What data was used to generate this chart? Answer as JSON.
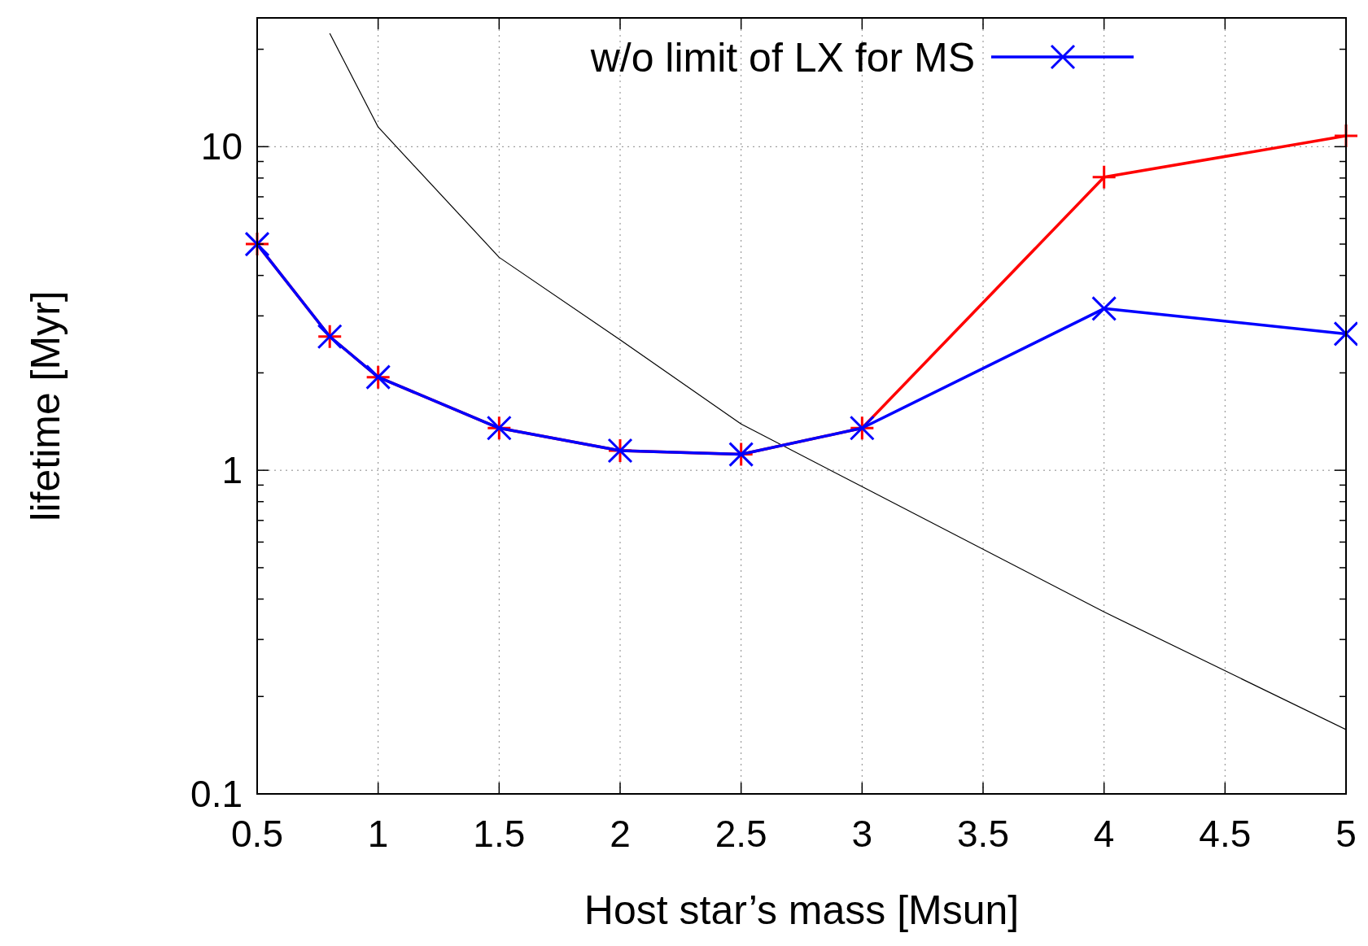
{
  "chart_data": {
    "type": "line",
    "xlabel": "Host star’s mass [Msun]",
    "ylabel": "lifetime [Myr]",
    "log": "y",
    "xlim": [
      0.5,
      5
    ],
    "xticks": [
      0.5,
      1,
      1.5,
      2,
      2.5,
      3,
      3.5,
      4,
      4.5,
      5
    ],
    "ylim": [
      0.1,
      25
    ],
    "yticks": [
      0.1,
      {
        "value": 0.2,
        "label": null
      },
      {
        "value": 0.3,
        "label": null
      },
      {
        "value": 0.4,
        "label": null
      },
      {
        "value": 0.5,
        "label": null
      },
      {
        "value": 0.6,
        "label": null
      },
      {
        "value": 0.7,
        "label": null
      },
      {
        "value": 0.8,
        "label": null
      },
      {
        "value": 0.9,
        "label": null
      },
      1,
      {
        "value": 2,
        "label": null
      },
      {
        "value": 3,
        "label": null
      },
      {
        "value": 4,
        "label": null
      },
      {
        "value": 5,
        "label": null
      },
      {
        "value": 6,
        "label": null
      },
      {
        "value": 7,
        "label": null
      },
      {
        "value": 8,
        "label": null
      },
      {
        "value": 9,
        "label": null
      },
      10,
      {
        "value": 20,
        "label": null
      }
    ],
    "grid": true,
    "legend": "top",
    "x": [
      0.5,
      0.8,
      1,
      1.5,
      2,
      2.5,
      3,
      4,
      5
    ],
    "series": [
      {
        "color": "#000000",
        "marker": "none",
        "x": [
          0.8,
          1,
          1.5,
          2,
          2.5,
          3,
          4,
          5
        ],
        "values": [
          22.4,
          11.5,
          4.55,
          2.53,
          1.39,
          0.89,
          0.365,
          0.158
        ]
      },
      {
        "color": "#ff0000",
        "marker": "cross",
        "values": [
          5.0,
          2.59,
          1.94,
          1.35,
          1.15,
          1.12,
          1.35,
          8.05,
          10.8
        ]
      },
      {
        "name": "w/o limit of LX for MS",
        "color": "#0000ff",
        "marker": "x",
        "values": [
          5.0,
          2.59,
          1.94,
          1.35,
          1.15,
          1.12,
          1.35,
          3.16,
          2.64
        ]
      }
    ]
  }
}
